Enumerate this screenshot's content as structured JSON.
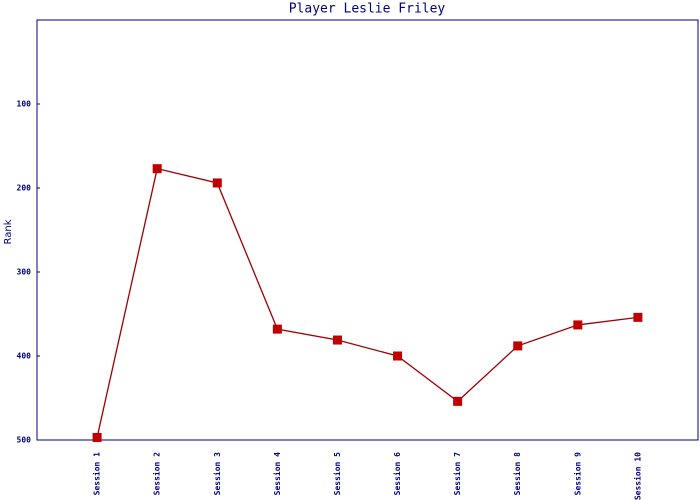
{
  "chart_data": {
    "type": "line",
    "title": "Player Leslie Friley",
    "y_label": "Rank",
    "categories": [
      "Session 1",
      "Session 2",
      "Session 3",
      "Session 4",
      "Session 5",
      "Session 6",
      "Session 7",
      "Session 8",
      "Session 9",
      "Session 10"
    ],
    "values": [
      497,
      177,
      194,
      368,
      381,
      400,
      454,
      388,
      363,
      354
    ],
    "color": "#a00000",
    "marker_color": "#c00000",
    "ylim": [
      0,
      500
    ],
    "y_inverted": true,
    "yticks": [
      100,
      200,
      300,
      400,
      500
    ]
  }
}
